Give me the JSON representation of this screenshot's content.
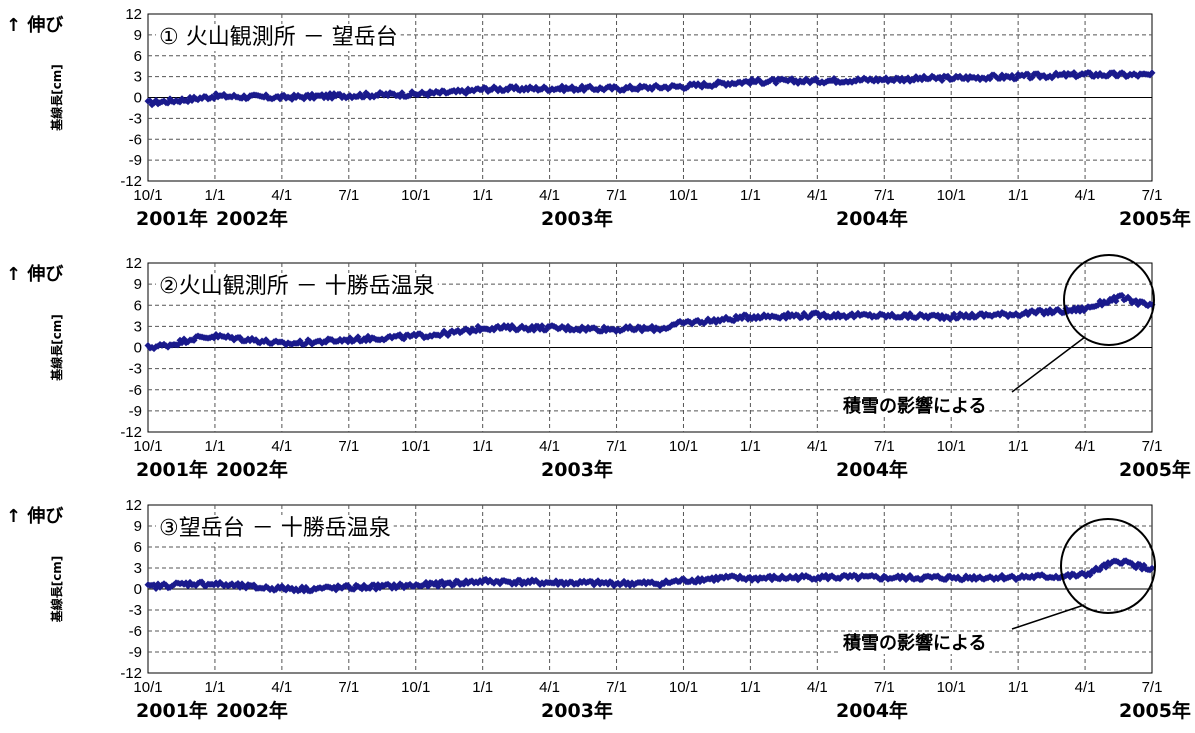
{
  "chart_data": [
    {
      "type": "scatter",
      "title": "① 火山観測所 － 望岳台",
      "extension_label": "↑ 伸び",
      "ylabel": "基線長[cm]",
      "ylim": [
        -12,
        12
      ],
      "yticks": [
        12,
        9,
        6,
        3,
        0,
        -3,
        -6,
        -9,
        -12
      ],
      "xticks": [
        "10/1",
        "1/1",
        "4/1",
        "7/1",
        "10/1",
        "1/1",
        "4/1",
        "7/1",
        "10/1",
        "1/1",
        "4/1",
        "7/1",
        "10/1",
        "1/1",
        "4/1",
        "7/1"
      ],
      "year_labels": [
        "2001年",
        "2002年",
        "2003年",
        "2004年",
        "2005年"
      ],
      "grid": true,
      "marker_color": "#1a1a8c",
      "series": [
        {
          "x": [
            "2001-10-01",
            "2001-12-01",
            "2002-01-01",
            "2002-04-01",
            "2002-07-01",
            "2002-10-01",
            "2002-12-01",
            "2003-01-01",
            "2003-04-01",
            "2003-07-01",
            "2003-10-01",
            "2003-12-01",
            "2004-01-01",
            "2004-04-01",
            "2004-07-01",
            "2004-10-01",
            "2005-01-01",
            "2005-04-01",
            "2005-07-01"
          ],
          "y": [
            -0.8,
            -0.2,
            0.2,
            0.0,
            0.3,
            0.5,
            0.8,
            1.2,
            1.3,
            1.3,
            1.6,
            2.1,
            2.3,
            2.4,
            2.6,
            2.8,
            3.0,
            3.3,
            3.2
          ]
        }
      ]
    },
    {
      "type": "scatter",
      "title": "②火山観測所 － 十勝岳温泉",
      "extension_label": "↑ 伸び",
      "ylabel": "基線長[cm]",
      "ylim": [
        -12,
        12
      ],
      "yticks": [
        12,
        9,
        6,
        3,
        0,
        -3,
        -6,
        -9,
        -12
      ],
      "xticks": [
        "10/1",
        "1/1",
        "4/1",
        "7/1",
        "10/1",
        "1/1",
        "4/1",
        "7/1",
        "10/1",
        "1/1",
        "4/1",
        "7/1",
        "10/1",
        "1/1",
        "4/1",
        "7/1"
      ],
      "year_labels": [
        "2001年",
        "2002年",
        "2003年",
        "2004年",
        "2005年"
      ],
      "grid": true,
      "marker_color": "#1a1a8c",
      "annotation": {
        "text": "積雪の影響による",
        "x": "2005-05-15",
        "y": 6.5
      },
      "series": [
        {
          "x": [
            "2001-10-01",
            "2001-11-01",
            "2001-12-01",
            "2002-01-01",
            "2002-03-01",
            "2002-04-01",
            "2002-06-01",
            "2002-08-01",
            "2002-10-01",
            "2002-12-01",
            "2003-01-01",
            "2003-04-01",
            "2003-07-01",
            "2003-09-01",
            "2003-10-01",
            "2003-12-01",
            "2004-01-01",
            "2004-04-01",
            "2004-07-01",
            "2004-10-01",
            "2005-01-01",
            "2005-03-01",
            "2005-04-01",
            "2005-05-01",
            "2005-05-20",
            "2005-06-15",
            "2005-07-01"
          ],
          "y": [
            0.0,
            0.4,
            1.3,
            1.6,
            1.0,
            0.5,
            0.9,
            1.3,
            1.6,
            2.2,
            2.8,
            2.8,
            2.6,
            2.7,
            3.5,
            4.0,
            4.4,
            4.6,
            4.5,
            4.4,
            4.8,
            5.2,
            5.5,
            6.6,
            7.1,
            6.3,
            5.8
          ]
        }
      ]
    },
    {
      "type": "scatter",
      "title": "③望岳台 － 十勝岳温泉",
      "extension_label": "↑ 伸び",
      "ylabel": "基線長[cm]",
      "ylim": [
        -12,
        12
      ],
      "yticks": [
        12,
        9,
        6,
        3,
        0,
        -3,
        -6,
        -9,
        -12
      ],
      "xticks": [
        "10/1",
        "1/1",
        "4/1",
        "7/1",
        "10/1",
        "1/1",
        "4/1",
        "7/1",
        "10/1",
        "1/1",
        "4/1",
        "7/1",
        "10/1",
        "1/1",
        "4/1",
        "7/1"
      ],
      "year_labels": [
        "2001年",
        "2002年",
        "2003年",
        "2004年",
        "2005年"
      ],
      "grid": true,
      "marker_color": "#1a1a8c",
      "annotation": {
        "text": "積雪の影響による",
        "x": "2005-05-15",
        "y": 3.5
      },
      "series": [
        {
          "x": [
            "2001-10-01",
            "2001-12-01",
            "2002-01-01",
            "2002-03-01",
            "2002-05-01",
            "2002-08-01",
            "2002-10-01",
            "2002-12-01",
            "2003-01-01",
            "2003-04-01",
            "2003-07-01",
            "2003-09-01",
            "2003-10-01",
            "2003-12-01",
            "2004-01-01",
            "2004-04-01",
            "2004-07-01",
            "2004-10-01",
            "2005-01-01",
            "2005-03-01",
            "2005-04-01",
            "2005-05-01",
            "2005-05-20",
            "2005-06-15",
            "2005-07-01"
          ],
          "y": [
            0.3,
            0.8,
            0.7,
            0.2,
            0.0,
            0.3,
            0.5,
            0.9,
            1.1,
            0.9,
            0.8,
            0.8,
            1.2,
            1.6,
            1.5,
            1.7,
            1.6,
            1.6,
            1.7,
            1.8,
            2.0,
            3.4,
            4.0,
            3.2,
            2.8
          ]
        }
      ]
    }
  ]
}
